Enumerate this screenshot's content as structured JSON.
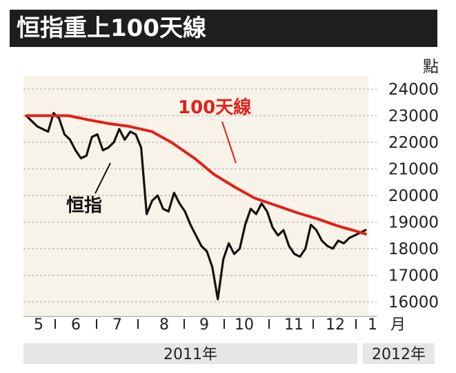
{
  "header": {
    "title": "恒指重上100天線"
  },
  "chart_data": {
    "type": "line",
    "title": "恒指重上100天線",
    "ylabel": "點",
    "ylim": [
      15800,
      24300
    ],
    "yticks": [
      16000,
      17000,
      18000,
      19000,
      20000,
      21000,
      22000,
      23000,
      24000
    ],
    "x_tick_labels": [
      "5",
      "6",
      "7",
      "8",
      "9",
      "10",
      "11",
      "12",
      "1"
    ],
    "x_unit": "月",
    "year_labels": [
      "2011年",
      "2012年"
    ],
    "grid": true,
    "series": [
      {
        "name": "恒指",
        "color": "#111111",
        "x": [
          "2011-05-01",
          "2011-05-05",
          "2011-05-09",
          "2011-05-13",
          "2011-05-17",
          "2011-05-21",
          "2011-05-25",
          "2011-05-29",
          "2011-06-02",
          "2011-06-06",
          "2011-06-10",
          "2011-06-14",
          "2011-06-18",
          "2011-06-22",
          "2011-06-26",
          "2011-06-30",
          "2011-07-04",
          "2011-07-08",
          "2011-07-12",
          "2011-07-16",
          "2011-07-20",
          "2011-07-24",
          "2011-07-28",
          "2011-08-01",
          "2011-08-05",
          "2011-08-09",
          "2011-08-13",
          "2011-08-17",
          "2011-08-21",
          "2011-08-25",
          "2011-08-29",
          "2011-09-02",
          "2011-09-06",
          "2011-09-10",
          "2011-09-14",
          "2011-09-18",
          "2011-09-22",
          "2011-09-26",
          "2011-09-30",
          "2011-10-04",
          "2011-10-08",
          "2011-10-12",
          "2011-10-16",
          "2011-10-20",
          "2011-10-24",
          "2011-10-28",
          "2011-11-01",
          "2011-11-05",
          "2011-11-09",
          "2011-11-13",
          "2011-11-17",
          "2011-11-21",
          "2011-11-25",
          "2011-11-29",
          "2011-12-03",
          "2011-12-07",
          "2011-12-11",
          "2011-12-15",
          "2011-12-19",
          "2011-12-23",
          "2011-12-27",
          "2011-12-31",
          "2012-01-04"
        ],
        "values": [
          23000,
          22800,
          22600,
          22500,
          22400,
          23100,
          22900,
          22300,
          22100,
          21700,
          21400,
          21500,
          22200,
          22300,
          21700,
          21800,
          22000,
          22500,
          22100,
          22400,
          22300,
          21800,
          19300,
          19800,
          20000,
          19500,
          19400,
          20100,
          19700,
          19400,
          18900,
          18500,
          18100,
          17900,
          17300,
          16100,
          17600,
          18200,
          17800,
          18000,
          18900,
          19500,
          19300,
          19700,
          19400,
          18800,
          18500,
          18700,
          18100,
          17800,
          17700,
          18000,
          18900,
          18700,
          18300,
          18100,
          18000,
          18300,
          18200,
          18400,
          18500,
          18600,
          18700
        ]
      },
      {
        "name": "100天線",
        "color": "#e41f1a",
        "x": [
          "2011-05-01",
          "2011-05-15",
          "2011-06-01",
          "2011-06-15",
          "2011-07-01",
          "2011-07-15",
          "2011-08-01",
          "2011-08-15",
          "2011-09-01",
          "2011-09-15",
          "2011-10-01",
          "2011-10-15",
          "2011-11-01",
          "2011-11-15",
          "2011-12-01",
          "2011-12-15",
          "2012-01-01",
          "2012-01-04"
        ],
        "values": [
          23000,
          23000,
          23000,
          22850,
          22700,
          22600,
          22400,
          22000,
          21400,
          20800,
          20300,
          19900,
          19600,
          19350,
          19100,
          18850,
          18600,
          18550
        ]
      }
    ],
    "annotations": [
      {
        "text": "100天線",
        "series": "100天線",
        "color": "#e41f1a"
      },
      {
        "text": "恒指",
        "series": "恒指",
        "color": "#111111"
      }
    ]
  }
}
